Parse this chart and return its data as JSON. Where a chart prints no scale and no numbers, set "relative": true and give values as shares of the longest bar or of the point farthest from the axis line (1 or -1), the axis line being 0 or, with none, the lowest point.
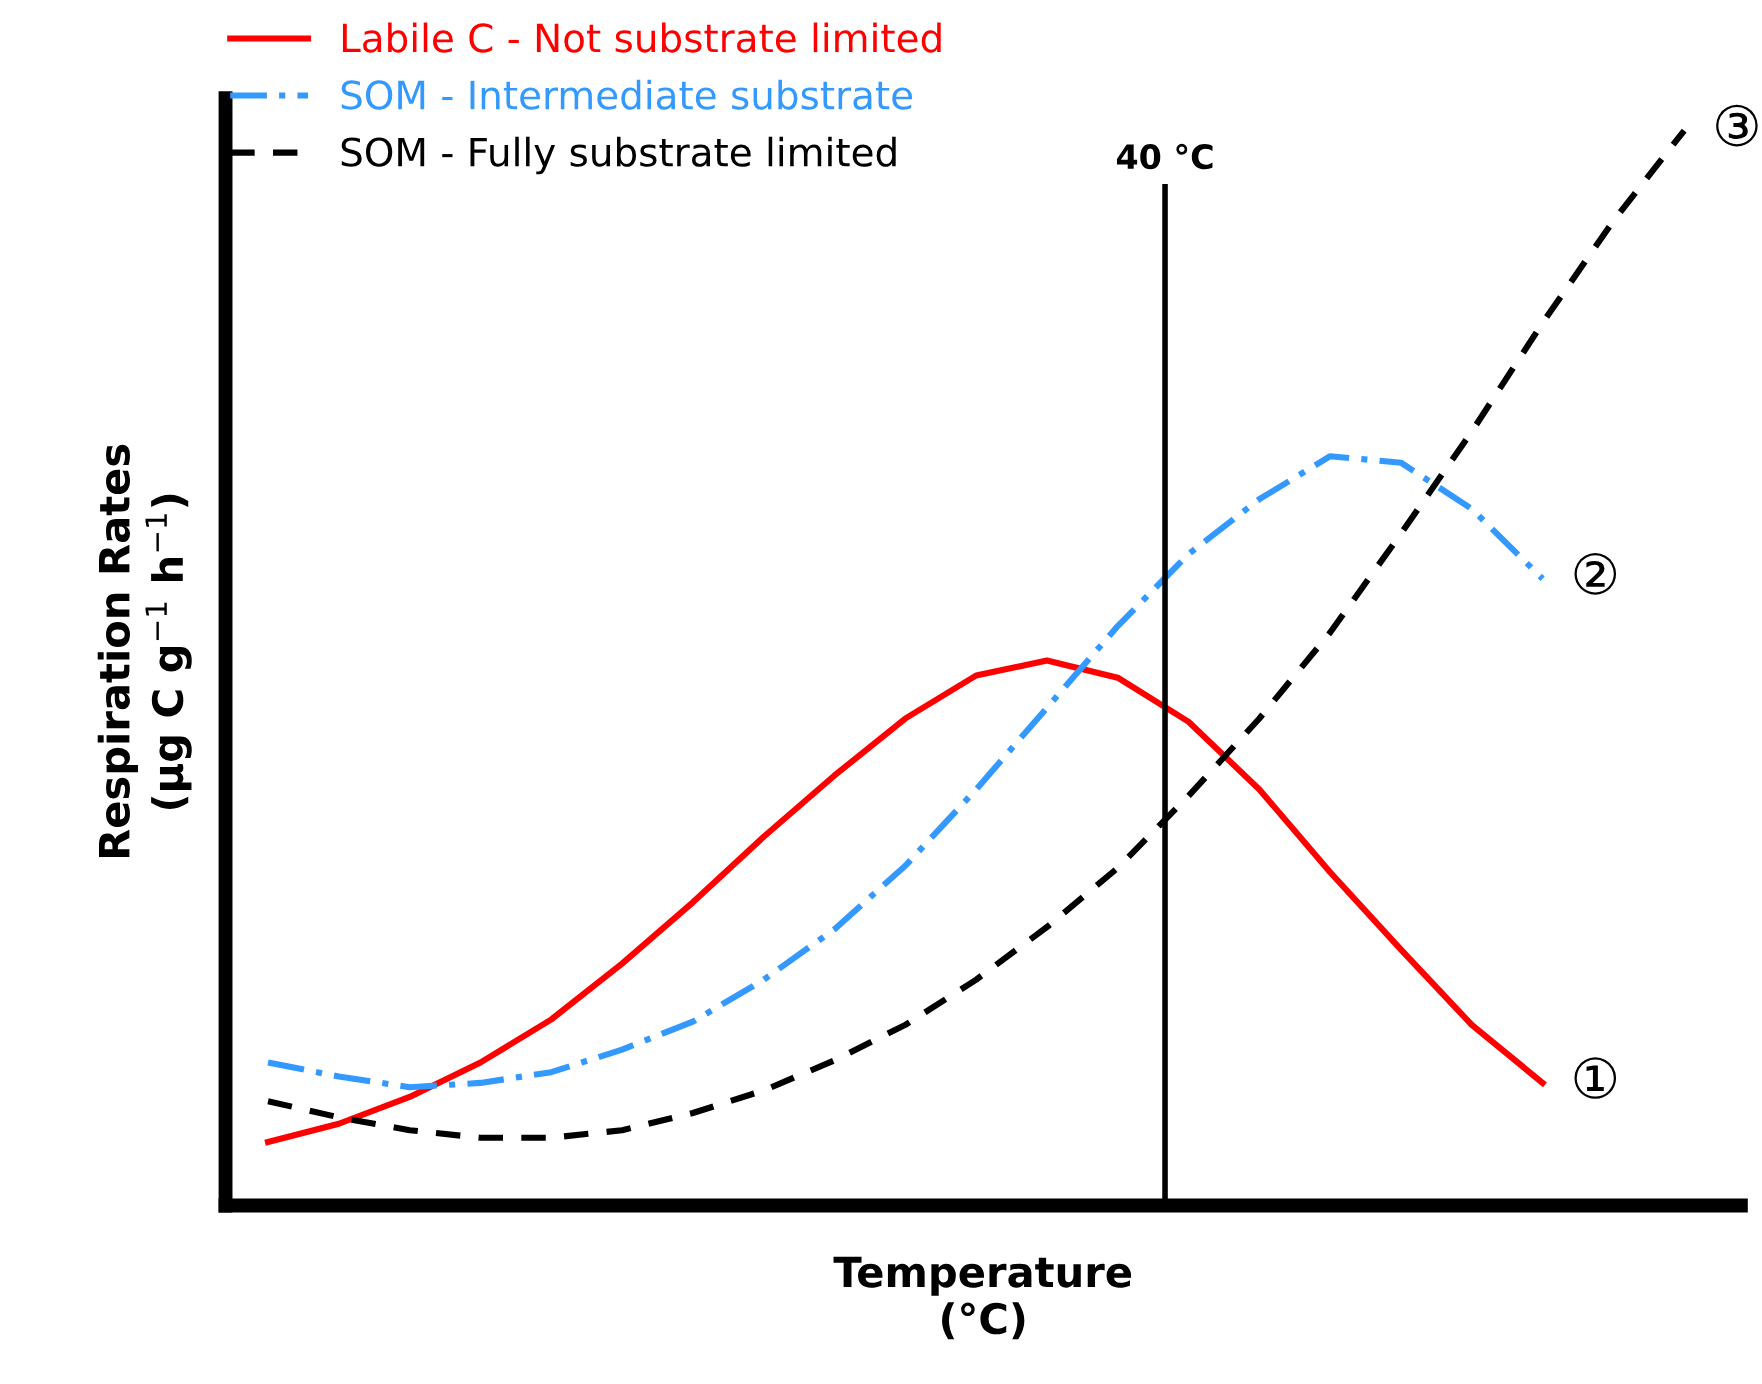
{
  "chart_data": {
    "type": "line",
    "relative": true,
    "xlabel": "Temperature\n(°C)",
    "ylabel": "Respiration Rates\n(µg C g$^{−1}$ h$^{−1}$)",
    "categories": [
      null,
      null,
      null,
      null,
      null,
      null,
      null,
      null,
      null,
      null,
      null,
      null,
      null,
      null,
      null,
      null,
      null,
      null,
      null,
      null,
      null
    ],
    "series": [
      {
        "name": "Labile C - Not substrate limited",
        "color": "#ff0000",
        "line_style": "solid",
        "values": [
          0.059,
          0.076,
          0.101,
          0.133,
          0.173,
          0.225,
          0.282,
          0.343,
          0.4,
          0.453,
          0.493,
          0.507,
          0.491,
          0.45,
          0.387,
          0.31,
          0.238,
          0.168,
          0.114,
          null,
          null
        ]
      },
      {
        "name": "SOM - Intermediate substrate",
        "color": "#3399ff",
        "line_style": "dashdot",
        "values": [
          0.133,
          0.12,
          0.11,
          0.114,
          0.124,
          0.145,
          0.171,
          0.21,
          0.257,
          0.316,
          0.387,
          0.463,
          0.539,
          0.606,
          0.657,
          0.697,
          0.691,
          0.648,
          0.583,
          null,
          null
        ]
      },
      {
        "name": "SOM - Fully substrate limited",
        "color": "#000000",
        "line_style": "dashed",
        "values": [
          0.097,
          0.082,
          0.07,
          0.063,
          0.063,
          0.07,
          0.086,
          0.107,
          0.135,
          0.168,
          0.21,
          0.259,
          0.314,
          0.381,
          0.453,
          0.533,
          0.625,
          0.72,
          0.821,
          0.916,
          1.0
        ]
      }
    ],
    "annotations": [
      "①",
      "②",
      "③",
      "40 °C"
    ],
    "legend": "top left",
    "marker": "none"
  }
}
